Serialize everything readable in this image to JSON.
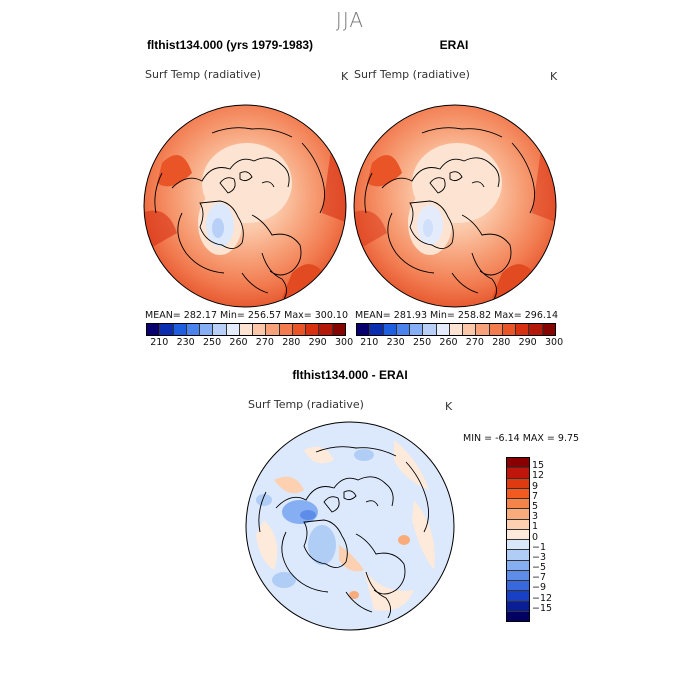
{
  "season": "JJA",
  "panels": [
    {
      "title": "flthist134.000 (yrs 1979-1983)",
      "variable": "Surf Temp (radiative)",
      "unit": "K",
      "stats": "MEAN= 282.17   Min= 256.57   Max= 300.10"
    },
    {
      "title": "ERAI",
      "variable": "Surf Temp (radiative)",
      "unit": "K",
      "stats": "MEAN= 281.93   Min= 258.82   Max= 296.14"
    }
  ],
  "abs_colorbar": {
    "colors": [
      "#08006e",
      "#0b2db0",
      "#1d5fe0",
      "#4a82ee",
      "#86aef5",
      "#b8d0f8",
      "#e4ecfb",
      "#fde4d2",
      "#fbc7a8",
      "#f7a27a",
      "#f27b50",
      "#ea5528",
      "#d73112",
      "#b41808",
      "#850400"
    ],
    "tick_labels": [
      "210",
      "230",
      "250",
      "260",
      "270",
      "280",
      "290",
      "300"
    ]
  },
  "diff_panel": {
    "title": "flthist134.000 - ERAI",
    "variable": "Surf Temp (radiative)",
    "unit": "K",
    "stats": "MIN =   -6.14 MAX =    9.75"
  },
  "diff_colorbar": {
    "colors": [
      "#8a0000",
      "#c0150a",
      "#e03a10",
      "#f25a22",
      "#f6844a",
      "#f9ab7c",
      "#fcd0b0",
      "#fdeadb",
      "#d9e7fb",
      "#b0cdf6",
      "#86aef2",
      "#5d8de8",
      "#3769dc",
      "#1840c4",
      "#0a1e96",
      "#020060"
    ],
    "tick_labels": [
      "15",
      "12",
      "9",
      "7",
      "5",
      "3",
      "1",
      "0",
      "−1",
      "−3",
      "−5",
      "−7",
      "−9",
      "−12",
      "−15"
    ]
  }
}
